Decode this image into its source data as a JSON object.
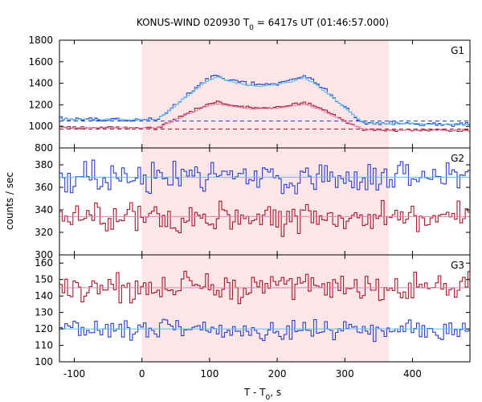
{
  "chart_data": {
    "type": "line",
    "title": "KONUS-WIND 020930 T",
    "title_sub": "0",
    "title_rest": " = 6417s UT (01:46:57.000)",
    "xlabel": "T - T",
    "xlabel_sub": "0",
    "xlabel_rest": ", s",
    "ylabel": "counts / sec",
    "xlim": [
      -122,
      485
    ],
    "x_ticks": [
      "-100",
      "0",
      "100",
      "200",
      "300",
      "400"
    ],
    "x_tick_values": [
      -100,
      0,
      100,
      200,
      300,
      400
    ],
    "highlight_interval": [
      0,
      365
    ],
    "grid": false,
    "colors": {
      "blue": "#2a3fc4",
      "red": "#a01a2a",
      "light_blue": "#5bc0eb",
      "pink": "#e080b0",
      "highlight": "#fde6e8"
    },
    "panels": [
      {
        "label": "G1",
        "ylim": [
          800,
          1800
        ],
        "y_ticks": [
          "800",
          "1000",
          "1200",
          "1400",
          "1600",
          "1800"
        ],
        "y_tick_values": [
          800,
          1000,
          1200,
          1400,
          1600,
          1800
        ],
        "background_levels": [
          1050,
          975
        ],
        "series": [
          {
            "color": "blue",
            "kind": "burst",
            "base": 1060,
            "slope": -0.09,
            "peak": 490,
            "noise": 22,
            "seed": 11
          },
          {
            "color": "light_blue",
            "kind": "smooth",
            "base": 1060,
            "slope": -0.09,
            "peak": 470,
            "noise": 8,
            "seed": 12
          },
          {
            "color": "red",
            "kind": "burst",
            "base": 985,
            "slope": -0.05,
            "peak": 280,
            "noise": 16,
            "seed": 13
          },
          {
            "color": "pink",
            "kind": "smooth",
            "base": 985,
            "slope": -0.05,
            "peak": 265,
            "noise": 6,
            "seed": 14
          }
        ]
      },
      {
        "label": "G2",
        "ylim": [
          300,
          395
        ],
        "y_ticks": [
          "300",
          "320",
          "340",
          "360",
          "380"
        ],
        "y_tick_values": [
          300,
          320,
          340,
          360,
          380
        ],
        "series": [
          {
            "color": "blue",
            "kind": "noise",
            "mean": 369,
            "noise": 9,
            "seed": 21
          },
          {
            "color": "light_blue",
            "kind": "flat",
            "mean": 369
          },
          {
            "color": "red",
            "kind": "noise",
            "mean": 334,
            "noise": 8,
            "seed": 22
          },
          {
            "color": "pink",
            "kind": "flat",
            "mean": 334
          }
        ]
      },
      {
        "label": "G3",
        "ylim": [
          100,
          165
        ],
        "y_ticks": [
          "100",
          "110",
          "120",
          "130",
          "140",
          "150",
          "160"
        ],
        "y_tick_values": [
          100,
          110,
          120,
          130,
          140,
          150,
          160
        ],
        "series": [
          {
            "color": "red",
            "kind": "noise",
            "mean": 145,
            "noise": 5,
            "seed": 31
          },
          {
            "color": "pink",
            "kind": "flat",
            "mean": 145
          },
          {
            "color": "blue",
            "kind": "noise",
            "mean": 120,
            "noise": 4,
            "seed": 32
          },
          {
            "color": "light_blue",
            "kind": "flat",
            "mean": 120
          }
        ]
      }
    ]
  }
}
